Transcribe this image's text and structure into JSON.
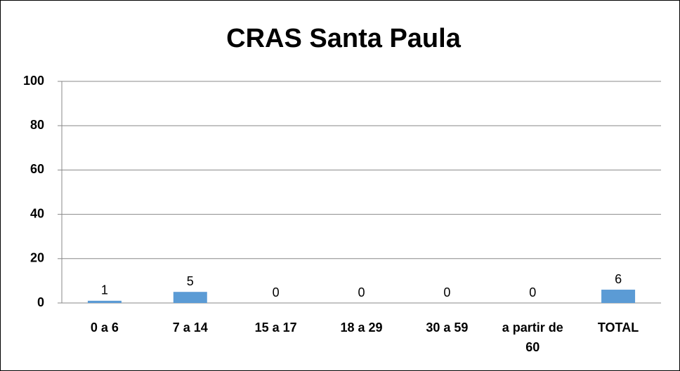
{
  "chart_data": {
    "type": "bar",
    "title": "CRAS Santa Paula",
    "categories": [
      "0 a 6",
      "7 a 14",
      "15 a 17",
      "18 a 29",
      "30 a 59",
      "a partir de 60",
      "TOTAL"
    ],
    "values": [
      1,
      5,
      0,
      0,
      0,
      0,
      6
    ],
    "color": "#5b9bd5",
    "ylim": [
      0,
      100
    ],
    "yticks": [
      0,
      20,
      40,
      60,
      80,
      100
    ],
    "grid": true
  }
}
